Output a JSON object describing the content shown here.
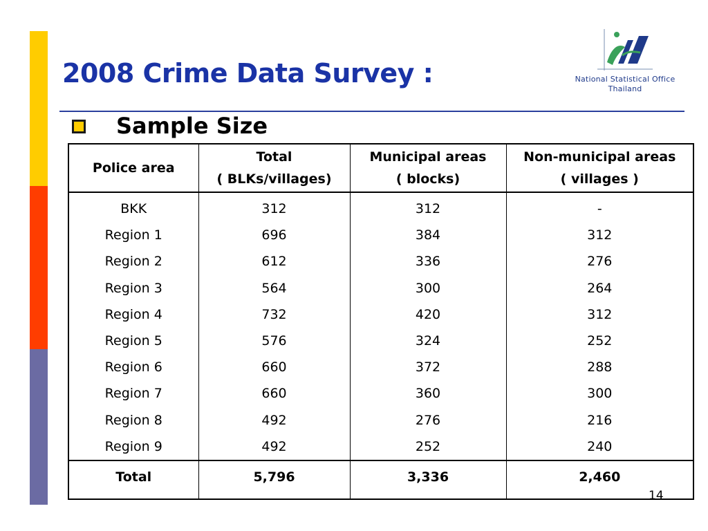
{
  "title": "2008 Crime Data Survey :",
  "logo": {
    "line1": "National Statistical Office",
    "line2": "Thailand"
  },
  "bullet": "Sample Size",
  "table": {
    "headers": [
      [
        "Police area"
      ],
      [
        "Total",
        "( BLKs/villages)"
      ],
      [
        "Municipal areas",
        "( blocks)"
      ],
      [
        "Non-municipal areas",
        "( villages )"
      ]
    ],
    "rows": [
      [
        "BKK",
        "312",
        "312",
        "-"
      ],
      [
        "Region 1",
        "696",
        "384",
        "312"
      ],
      [
        "Region 2",
        "612",
        "336",
        "276"
      ],
      [
        "Region 3",
        "564",
        "300",
        "264"
      ],
      [
        "Region 4",
        "732",
        "420",
        "312"
      ],
      [
        "Region 5",
        "576",
        "324",
        "252"
      ],
      [
        "Region 6",
        "660",
        "372",
        "288"
      ],
      [
        "Region 7",
        "660",
        "360",
        "300"
      ],
      [
        "Region 8",
        "492",
        "276",
        "216"
      ],
      [
        "Region 9",
        "492",
        "252",
        "240"
      ]
    ],
    "footer": [
      "Total",
      "5,796",
      "3,336",
      "2,460"
    ]
  },
  "page_number": "14",
  "colors": {
    "title": "#1a33a6",
    "bar_top": "#ffcc00",
    "bar_middle": "#ff3d00",
    "bar_bottom": "#6b6ba3"
  }
}
